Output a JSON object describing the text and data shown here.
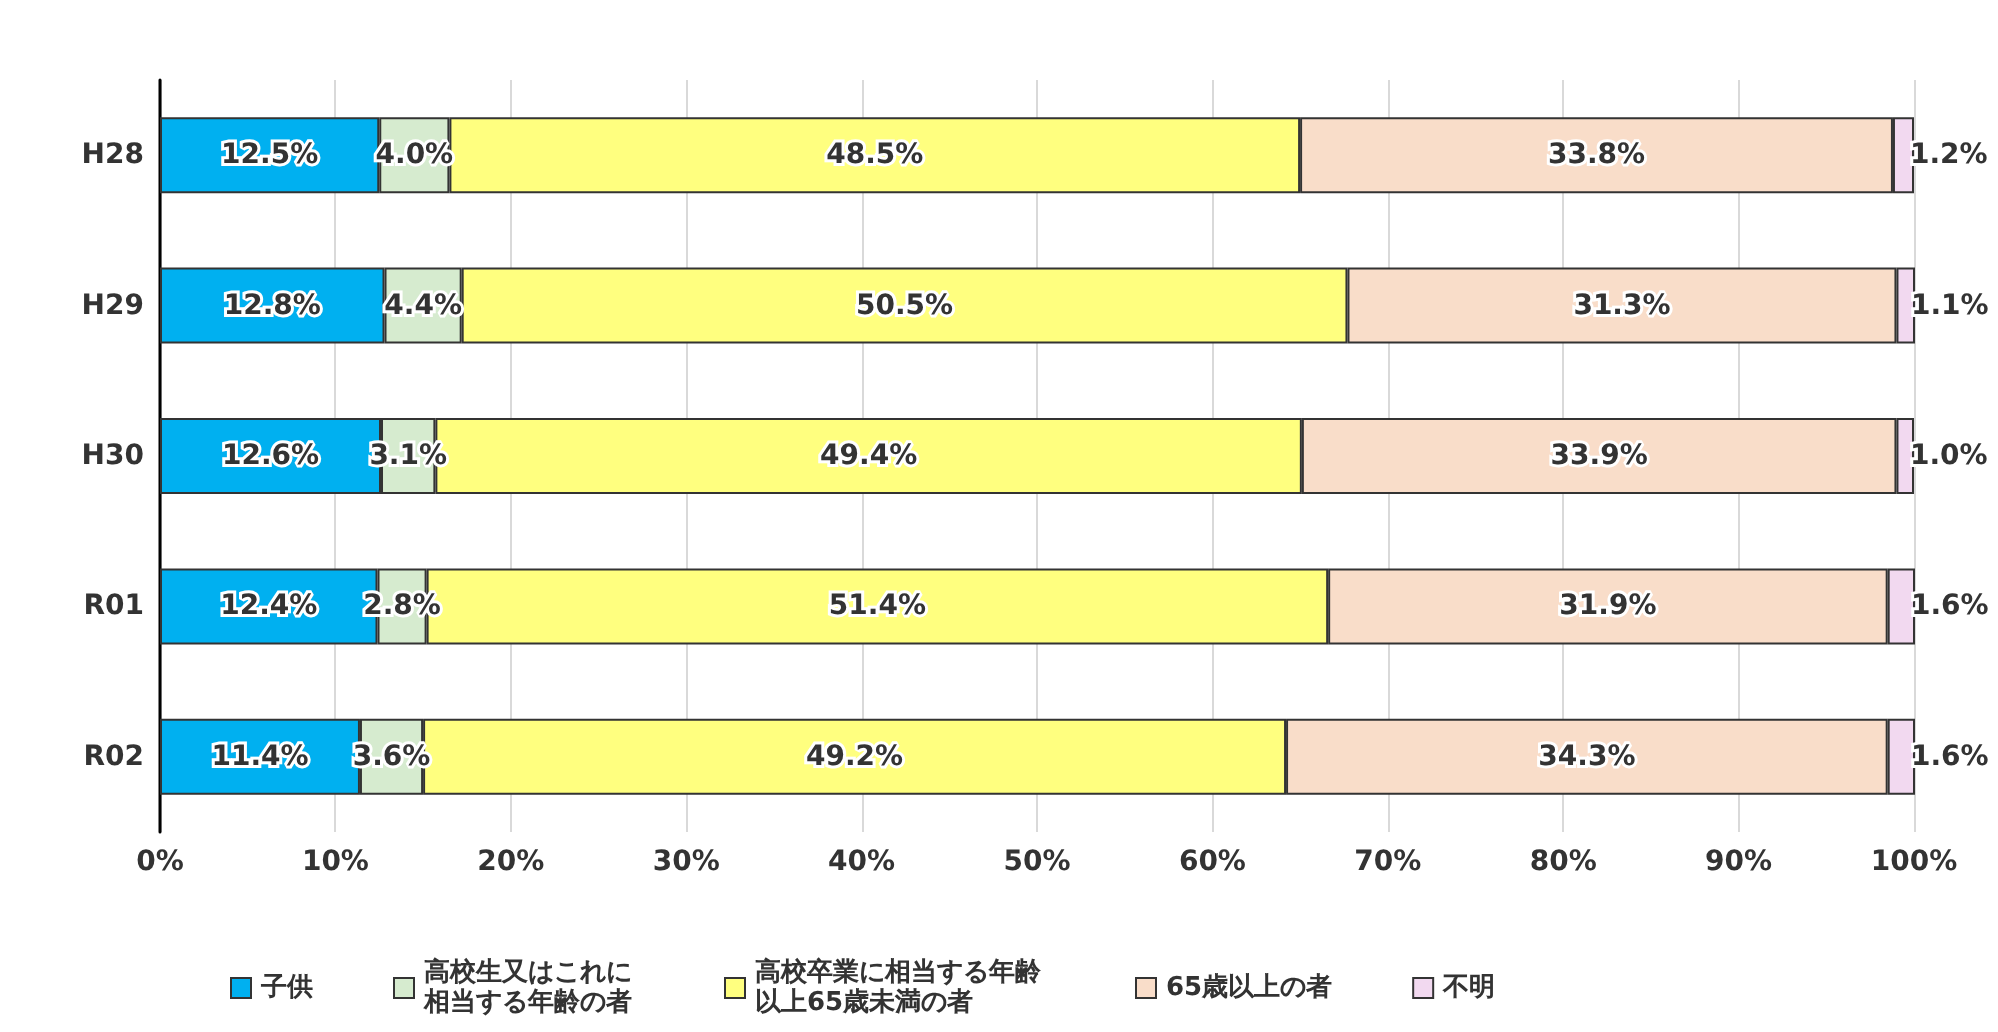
{
  "chart_data": {
    "type": "bar",
    "orientation": "horizontal",
    "stacked": true,
    "categories": [
      "H28",
      "H29",
      "H30",
      "R01",
      "R02"
    ],
    "series": [
      {
        "name": "子供",
        "color": "#00b0f0",
        "values": [
          12.5,
          12.8,
          12.6,
          12.4,
          11.4
        ],
        "value_labels": [
          "12.5%",
          "12.8%",
          "12.6%",
          "12.4%",
          "11.4%"
        ]
      },
      {
        "name": "高校生又はこれに相当する年齢の者",
        "color": "#d6ebcf",
        "values": [
          4.0,
          4.4,
          3.1,
          2.8,
          3.6
        ],
        "value_labels": [
          "4.0%",
          "4.4%",
          "3.1%",
          "2.8%",
          "3.6%"
        ]
      },
      {
        "name": "高校卒業に相当する年齢以上65歳未満の者",
        "color": "#ffff7f",
        "values": [
          48.5,
          50.5,
          49.4,
          51.4,
          49.2
        ],
        "value_labels": [
          "48.5%",
          "50.5%",
          "49.4%",
          "51.4%",
          "49.2%"
        ]
      },
      {
        "name": "65歳以上の者",
        "color": "#f9ddc9",
        "values": [
          33.8,
          31.3,
          33.9,
          31.9,
          34.3
        ],
        "value_labels": [
          "33.8%",
          "31.3%",
          "33.9%",
          "31.9%",
          "34.3%"
        ]
      },
      {
        "name": "不明",
        "color": "#f2d9f0",
        "values": [
          1.2,
          1.1,
          1.0,
          1.6,
          1.6
        ],
        "value_labels": [
          "1.2%",
          "1.1%",
          "1.0%",
          "1.6%",
          "1.6%"
        ]
      }
    ],
    "xlim": [
      0,
      100
    ],
    "xticks": [
      {
        "value": 0,
        "label": "0%"
      },
      {
        "value": 10,
        "label": "10%"
      },
      {
        "value": 20,
        "label": "20%"
      },
      {
        "value": 30,
        "label": "30%"
      },
      {
        "value": 40,
        "label": "40%"
      },
      {
        "value": 50,
        "label": "50%"
      },
      {
        "value": 60,
        "label": "60%"
      },
      {
        "value": 70,
        "label": "70%"
      },
      {
        "value": 80,
        "label": "80%"
      },
      {
        "value": 90,
        "label": "90%"
      },
      {
        "value": 100,
        "label": "100%"
      }
    ],
    "grid": "x",
    "legend": "bottom"
  }
}
